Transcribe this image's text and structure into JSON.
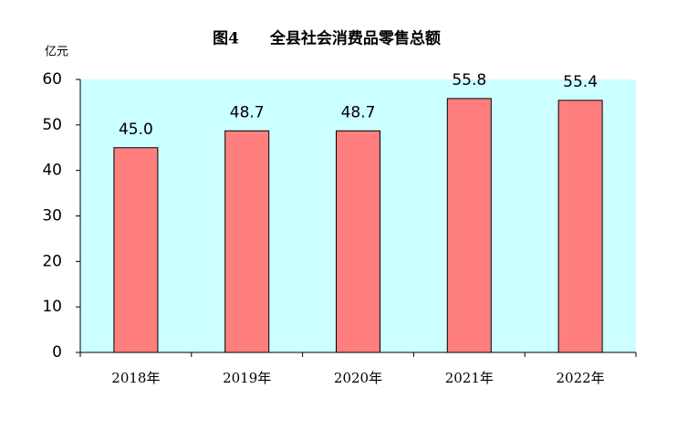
{
  "chart_data": {
    "type": "bar",
    "title": "图4　　全县社会消费品零售总额",
    "y_unit": "亿元",
    "categories": [
      "2018年",
      "2019年",
      "2020年",
      "2021年",
      "2022年"
    ],
    "values": [
      45.0,
      48.7,
      48.7,
      55.8,
      55.4
    ],
    "value_labels": [
      "45.0",
      "48.7",
      "48.7",
      "55.8",
      "55.4"
    ],
    "color": "#ff7f7f",
    "background": "#ccffff",
    "ylim": [
      0,
      60
    ],
    "yticks": [
      0,
      10,
      20,
      30,
      40,
      50,
      60
    ],
    "grid": false
  }
}
